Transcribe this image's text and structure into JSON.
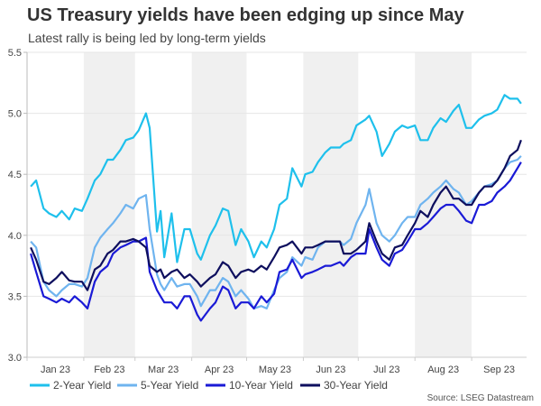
{
  "chart_data": {
    "type": "line",
    "title": "US Treasury yields have been edging up since May",
    "subtitle": "Latest rally is being led by long-term yields",
    "source": "Source: LSEG Datastream",
    "xlabel": "",
    "ylabel": "",
    "ylim": [
      3.0,
      5.5
    ],
    "yticks": [
      "3.0",
      "3.5",
      "4.0",
      "4.5",
      "5.0",
      "5.5"
    ],
    "xticks": [
      "Jan 23",
      "Feb 23",
      "Mar 23",
      "Apr 23",
      "May 23",
      "Jun 23",
      "Jul 23",
      "Aug 23",
      "Sep 23"
    ],
    "grid": true,
    "shaded_months": [
      "Feb 23",
      "Apr 23",
      "Jun 23",
      "Aug 23"
    ],
    "legend_position": "bottom",
    "x": [
      "2023-01-03",
      "2023-01-06",
      "2023-01-10",
      "2023-01-13",
      "2023-01-17",
      "2023-01-20",
      "2023-01-24",
      "2023-01-27",
      "2023-01-31",
      "2023-02-03",
      "2023-02-07",
      "2023-02-10",
      "2023-02-14",
      "2023-02-17",
      "2023-02-21",
      "2023-02-24",
      "2023-02-28",
      "2023-03-03",
      "2023-03-07",
      "2023-03-09",
      "2023-03-13",
      "2023-03-15",
      "2023-03-17",
      "2023-03-21",
      "2023-03-24",
      "2023-03-28",
      "2023-03-31",
      "2023-04-04",
      "2023-04-06",
      "2023-04-11",
      "2023-04-14",
      "2023-04-18",
      "2023-04-21",
      "2023-04-25",
      "2023-04-28",
      "2023-05-02",
      "2023-05-05",
      "2023-05-09",
      "2023-05-12",
      "2023-05-16",
      "2023-05-19",
      "2023-05-23",
      "2023-05-26",
      "2023-05-31",
      "2023-06-02",
      "2023-06-06",
      "2023-06-09",
      "2023-06-13",
      "2023-06-16",
      "2023-06-21",
      "2023-06-23",
      "2023-06-27",
      "2023-06-30",
      "2023-07-05",
      "2023-07-07",
      "2023-07-11",
      "2023-07-14",
      "2023-07-18",
      "2023-07-21",
      "2023-07-25",
      "2023-07-28",
      "2023-08-01",
      "2023-08-04",
      "2023-08-08",
      "2023-08-11",
      "2023-08-15",
      "2023-08-18",
      "2023-08-22",
      "2023-08-25",
      "2023-08-29",
      "2023-09-01",
      "2023-09-05",
      "2023-09-08",
      "2023-09-12",
      "2023-09-15",
      "2023-09-19",
      "2023-09-22",
      "2023-09-26",
      "2023-09-28"
    ],
    "series": [
      {
        "name": "2-Year Yield",
        "color": "#1ec0ec",
        "values": [
          4.4,
          4.45,
          4.22,
          4.18,
          4.15,
          4.2,
          4.13,
          4.22,
          4.2,
          4.3,
          4.45,
          4.5,
          4.62,
          4.62,
          4.7,
          4.78,
          4.8,
          4.86,
          5.0,
          4.88,
          4.03,
          4.2,
          3.82,
          4.18,
          3.78,
          4.05,
          4.05,
          3.85,
          3.8,
          4.0,
          4.08,
          4.22,
          4.2,
          3.92,
          4.05,
          3.95,
          3.82,
          3.95,
          3.9,
          4.05,
          4.25,
          4.3,
          4.55,
          4.4,
          4.5,
          4.52,
          4.6,
          4.68,
          4.72,
          4.72,
          4.75,
          4.78,
          4.9,
          4.95,
          4.98,
          4.85,
          4.65,
          4.75,
          4.85,
          4.9,
          4.88,
          4.9,
          4.78,
          4.78,
          4.88,
          4.96,
          4.93,
          5.02,
          5.07,
          4.88,
          4.88,
          4.95,
          4.98,
          5.0,
          5.03,
          5.15,
          5.12,
          5.12,
          5.08
        ]
      },
      {
        "name": "5-Year Yield",
        "color": "#6fb4ef",
        "values": [
          3.95,
          3.9,
          3.62,
          3.55,
          3.5,
          3.55,
          3.6,
          3.6,
          3.58,
          3.65,
          3.9,
          3.98,
          4.05,
          4.1,
          4.18,
          4.25,
          4.22,
          4.3,
          4.33,
          4.05,
          3.68,
          3.6,
          3.55,
          3.65,
          3.58,
          3.6,
          3.6,
          3.5,
          3.42,
          3.55,
          3.55,
          3.65,
          3.62,
          3.5,
          3.55,
          3.48,
          3.4,
          3.42,
          3.4,
          3.55,
          3.65,
          3.7,
          3.82,
          3.75,
          3.82,
          3.8,
          3.9,
          3.95,
          3.95,
          3.95,
          3.92,
          3.97,
          4.1,
          4.25,
          4.38,
          4.1,
          4.0,
          3.95,
          4.0,
          4.1,
          4.15,
          4.15,
          4.25,
          4.3,
          4.35,
          4.4,
          4.45,
          4.38,
          4.35,
          4.25,
          4.28,
          4.35,
          4.4,
          4.42,
          4.45,
          4.55,
          4.6,
          4.62,
          4.65
        ]
      },
      {
        "name": "10-Year Yield",
        "color": "#1a1ad6",
        "values": [
          3.85,
          3.7,
          3.5,
          3.48,
          3.45,
          3.48,
          3.45,
          3.5,
          3.45,
          3.4,
          3.62,
          3.7,
          3.75,
          3.85,
          3.9,
          3.92,
          3.95,
          3.95,
          3.98,
          3.7,
          3.55,
          3.5,
          3.45,
          3.45,
          3.4,
          3.5,
          3.5,
          3.35,
          3.3,
          3.4,
          3.45,
          3.58,
          3.55,
          3.4,
          3.45,
          3.45,
          3.4,
          3.5,
          3.45,
          3.52,
          3.7,
          3.72,
          3.8,
          3.65,
          3.68,
          3.7,
          3.72,
          3.75,
          3.75,
          3.78,
          3.75,
          3.82,
          3.85,
          3.85,
          4.05,
          3.9,
          3.8,
          3.75,
          3.85,
          3.88,
          3.95,
          4.05,
          4.05,
          4.1,
          4.15,
          4.22,
          4.25,
          4.25,
          4.2,
          4.12,
          4.1,
          4.25,
          4.25,
          4.28,
          4.35,
          4.4,
          4.45,
          4.55,
          4.6
        ]
      },
      {
        "name": "30-Year Yield",
        "color": "#0e0f5e",
        "values": [
          3.9,
          3.8,
          3.62,
          3.6,
          3.65,
          3.7,
          3.63,
          3.62,
          3.62,
          3.55,
          3.72,
          3.75,
          3.85,
          3.88,
          3.95,
          3.95,
          3.97,
          3.95,
          3.9,
          3.75,
          3.7,
          3.72,
          3.65,
          3.7,
          3.72,
          3.65,
          3.68,
          3.62,
          3.58,
          3.65,
          3.68,
          3.78,
          3.75,
          3.65,
          3.7,
          3.72,
          3.7,
          3.75,
          3.72,
          3.82,
          3.9,
          3.92,
          3.95,
          3.85,
          3.9,
          3.9,
          3.92,
          3.95,
          3.95,
          3.95,
          3.85,
          3.85,
          3.88,
          3.95,
          4.1,
          3.95,
          3.85,
          3.8,
          3.9,
          3.92,
          4.0,
          4.1,
          4.2,
          4.15,
          4.25,
          4.35,
          4.4,
          4.3,
          4.3,
          4.25,
          4.25,
          4.35,
          4.4,
          4.4,
          4.45,
          4.55,
          4.65,
          4.7,
          4.78
        ]
      }
    ]
  }
}
